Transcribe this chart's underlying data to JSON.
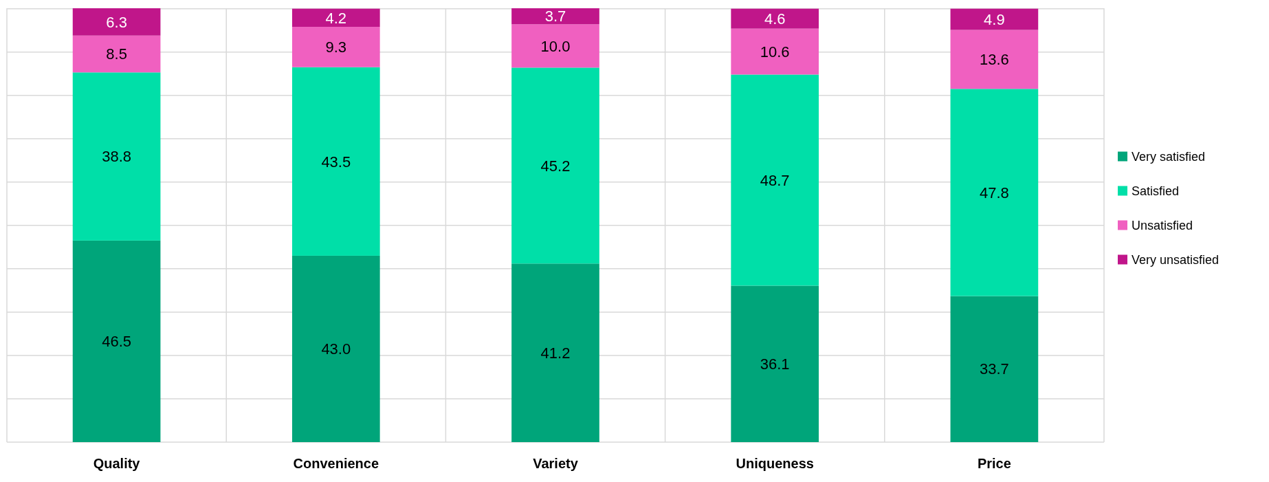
{
  "chart_data": {
    "type": "bar",
    "stacked": true,
    "categories": [
      "Quality",
      "Convenience",
      "Variety",
      "Uniqueness",
      "Price"
    ],
    "series": [
      {
        "name": "Very satisfied",
        "color": "#00a57a",
        "values": [
          46.5,
          43.0,
          41.2,
          36.1,
          33.7
        ],
        "value_labels": [
          "46.5",
          "43.0",
          "41.2",
          "36.1",
          "33.7"
        ]
      },
      {
        "name": "Satisfied",
        "color": "#00dfa8",
        "values": [
          38.8,
          43.5,
          45.2,
          48.7,
          47.8
        ],
        "value_labels": [
          "38.8",
          "43.5",
          "45.2",
          "48.7",
          "47.8"
        ]
      },
      {
        "name": "Unsatisfied",
        "color": "#f060c0",
        "values": [
          8.5,
          9.3,
          10.0,
          10.6,
          13.6
        ],
        "value_labels": [
          "8.5",
          "9.3",
          "10.0",
          "10.6",
          "13.6"
        ]
      },
      {
        "name": "Very unsatisfied",
        "color": "#c0168a",
        "values": [
          6.3,
          4.2,
          3.7,
          4.6,
          4.9
        ],
        "value_labels": [
          "6.3",
          "4.2",
          "3.7",
          "4.6",
          "4.9"
        ]
      }
    ],
    "ylim": [
      0,
      100.1
    ],
    "yticks": [
      {
        "value": 0,
        "label": null
      },
      {
        "value": 10,
        "label": null
      },
      {
        "value": 20,
        "label": null
      },
      {
        "value": 30,
        "label": null
      },
      {
        "value": 40,
        "label": null
      },
      {
        "value": 50,
        "label": null
      },
      {
        "value": 60,
        "label": null
      },
      {
        "value": 70,
        "label": null
      },
      {
        "value": 80,
        "label": null
      },
      {
        "value": 90,
        "label": null
      },
      {
        "value": 100,
        "label": null
      }
    ],
    "grid": true,
    "legend": "right"
  }
}
